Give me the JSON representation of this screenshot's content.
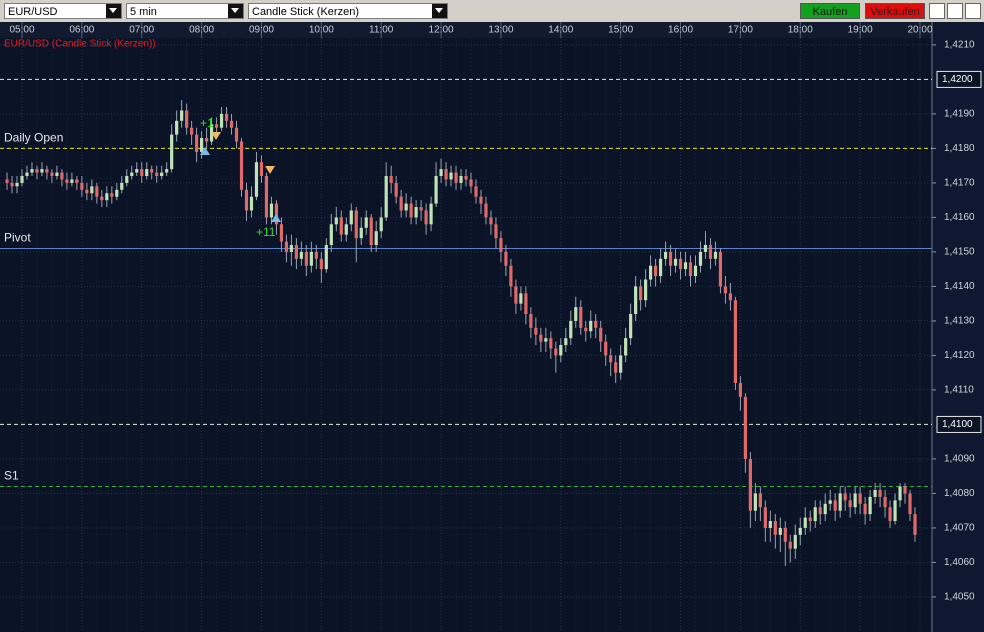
{
  "toolbar": {
    "symbol": "EUR/USD",
    "interval": "5 min",
    "chart_type": "Candle Stick (Kerzen)",
    "buy": "Kaufen",
    "sell": "Verkaufen"
  },
  "chart_data": {
    "type": "candlestick",
    "title": "EUR/USD (Candle Stick (Kerzen))",
    "xticks": [
      "05:00",
      "06:00",
      "07:00",
      "08:00",
      "09:00",
      "10:00",
      "11:00",
      "12:00",
      "13:00",
      "14:00",
      "15:00",
      "16:00",
      "17:00",
      "18:00",
      "19:00",
      "20:00"
    ],
    "ylim": [
      1.4041,
      1.4212
    ],
    "yticks": [
      {
        "value": 1.421,
        "label": "1,4210"
      },
      {
        "value": 1.419,
        "label": "1,4190"
      },
      {
        "value": 1.418,
        "label": "1,4180"
      },
      {
        "value": 1.417,
        "label": "1,4170"
      },
      {
        "value": 1.416,
        "label": "1,4160"
      },
      {
        "value": 1.415,
        "label": "1,4150"
      },
      {
        "value": 1.414,
        "label": "1,4140"
      },
      {
        "value": 1.413,
        "label": "1,4130"
      },
      {
        "value": 1.412,
        "label": "1,4120"
      },
      {
        "value": 1.411,
        "label": "1,4110"
      },
      {
        "value": 1.409,
        "label": "1,4090"
      },
      {
        "value": 1.408,
        "label": "1,4080"
      },
      {
        "value": 1.407,
        "label": "1,4070"
      },
      {
        "value": 1.406,
        "label": "1,4060"
      },
      {
        "value": 1.405,
        "label": "1,4050"
      }
    ],
    "highlighted_ticks": [
      {
        "value": 1.42,
        "label": "1,4200"
      },
      {
        "value": 1.41,
        "label": "1,4100"
      }
    ],
    "levels": [
      {
        "name": "Daily Open",
        "value": 1.418,
        "color": "#e6e61e",
        "style": "dashed"
      },
      {
        "name": "Pivot",
        "value": 1.4151,
        "color": "#5c82c8",
        "style": "solid"
      },
      {
        "name": "S1",
        "value": 1.4082,
        "color": "#3fae3f",
        "style": "dashed"
      }
    ],
    "annotations": [
      "+1",
      "+11"
    ],
    "up_color": "#bfe3b6",
    "down_color": "#e06a6a",
    "wick_color": "#9aa3b3",
    "candles": [
      [
        1.4171,
        1.4173,
        1.4168,
        1.417
      ],
      [
        1.417,
        1.4172,
        1.4167,
        1.4169
      ],
      [
        1.4169,
        1.4172,
        1.4167,
        1.417
      ],
      [
        1.417,
        1.4174,
        1.4169,
        1.4172
      ],
      [
        1.4172,
        1.4175,
        1.4171,
        1.4173
      ],
      [
        1.4173,
        1.4176,
        1.4172,
        1.4174
      ],
      [
        1.4174,
        1.4175,
        1.4171,
        1.4173
      ],
      [
        1.4173,
        1.4176,
        1.4172,
        1.4174
      ],
      [
        1.4174,
        1.4175,
        1.4171,
        1.4173
      ],
      [
        1.4173,
        1.4174,
        1.417,
        1.4172
      ],
      [
        1.4172,
        1.4175,
        1.4171,
        1.4173
      ],
      [
        1.4173,
        1.4174,
        1.4169,
        1.4171
      ],
      [
        1.4171,
        1.4173,
        1.4168,
        1.417
      ],
      [
        1.417,
        1.4173,
        1.4169,
        1.4171
      ],
      [
        1.4171,
        1.4172,
        1.4168,
        1.417
      ],
      [
        1.417,
        1.4172,
        1.4166,
        1.4168
      ],
      [
        1.4168,
        1.417,
        1.4165,
        1.4167
      ],
      [
        1.4167,
        1.4171,
        1.4165,
        1.4169
      ],
      [
        1.4169,
        1.417,
        1.4164,
        1.4166
      ],
      [
        1.4166,
        1.4168,
        1.4163,
        1.4165
      ],
      [
        1.4165,
        1.4169,
        1.4163,
        1.4167
      ],
      [
        1.4167,
        1.4169,
        1.4164,
        1.4166
      ],
      [
        1.4166,
        1.417,
        1.4165,
        1.4168
      ],
      [
        1.4168,
        1.4172,
        1.4167,
        1.417
      ],
      [
        1.417,
        1.4174,
        1.4169,
        1.4172
      ],
      [
        1.4172,
        1.4175,
        1.4171,
        1.4173
      ],
      [
        1.4173,
        1.4176,
        1.4172,
        1.4174
      ],
      [
        1.4174,
        1.4176,
        1.417,
        1.4172
      ],
      [
        1.4172,
        1.4176,
        1.4171,
        1.4174
      ],
      [
        1.4174,
        1.4175,
        1.4171,
        1.4173
      ],
      [
        1.4173,
        1.4175,
        1.417,
        1.4172
      ],
      [
        1.4172,
        1.4175,
        1.4171,
        1.4173
      ],
      [
        1.4173,
        1.4176,
        1.4172,
        1.4174
      ],
      [
        1.4174,
        1.4187,
        1.4173,
        1.4184
      ],
      [
        1.4184,
        1.4191,
        1.4182,
        1.4188
      ],
      [
        1.4188,
        1.4194,
        1.4186,
        1.4191
      ],
      [
        1.4191,
        1.4193,
        1.4184,
        1.4186
      ],
      [
        1.4186,
        1.4188,
        1.4181,
        1.4184
      ],
      [
        1.4184,
        1.4186,
        1.4176,
        1.4179
      ],
      [
        1.4179,
        1.4185,
        1.4177,
        1.4183
      ],
      [
        1.4183,
        1.4186,
        1.418,
        1.4182
      ],
      [
        1.4182,
        1.4189,
        1.4181,
        1.4187
      ],
      [
        1.4187,
        1.4189,
        1.4184,
        1.4186
      ],
      [
        1.4186,
        1.4192,
        1.4185,
        1.419
      ],
      [
        1.419,
        1.4192,
        1.4186,
        1.4188
      ],
      [
        1.4188,
        1.419,
        1.4184,
        1.4186
      ],
      [
        1.4186,
        1.4188,
        1.418,
        1.4182
      ],
      [
        1.4182,
        1.4183,
        1.4166,
        1.4168
      ],
      [
        1.4168,
        1.417,
        1.4159,
        1.4162
      ],
      [
        1.4162,
        1.4169,
        1.416,
        1.4166
      ],
      [
        1.4166,
        1.4179,
        1.4165,
        1.4176
      ],
      [
        1.4176,
        1.4178,
        1.417,
        1.4172
      ],
      [
        1.4172,
        1.4173,
        1.4158,
        1.416
      ],
      [
        1.416,
        1.4166,
        1.4158,
        1.4164
      ],
      [
        1.4164,
        1.4165,
        1.4155,
        1.4158
      ],
      [
        1.4158,
        1.416,
        1.415,
        1.4153
      ],
      [
        1.4153,
        1.4155,
        1.4147,
        1.415
      ],
      [
        1.415,
        1.4155,
        1.4146,
        1.4152
      ],
      [
        1.4152,
        1.4154,
        1.4145,
        1.4148
      ],
      [
        1.4148,
        1.4153,
        1.4146,
        1.415
      ],
      [
        1.415,
        1.4152,
        1.4143,
        1.4146
      ],
      [
        1.4146,
        1.4153,
        1.4144,
        1.415
      ],
      [
        1.415,
        1.4152,
        1.4145,
        1.4148
      ],
      [
        1.4148,
        1.415,
        1.4141,
        1.4145
      ],
      [
        1.4145,
        1.4154,
        1.4144,
        1.4152
      ],
      [
        1.4152,
        1.4161,
        1.415,
        1.4158
      ],
      [
        1.4158,
        1.4163,
        1.4156,
        1.416
      ],
      [
        1.416,
        1.4162,
        1.4153,
        1.4155
      ],
      [
        1.4155,
        1.416,
        1.4153,
        1.4158
      ],
      [
        1.4158,
        1.4164,
        1.4156,
        1.4162
      ],
      [
        1.4162,
        1.4163,
        1.4147,
        1.4154
      ],
      [
        1.4154,
        1.416,
        1.4152,
        1.4157
      ],
      [
        1.4157,
        1.4162,
        1.4155,
        1.416
      ],
      [
        1.416,
        1.4161,
        1.415,
        1.4152
      ],
      [
        1.4152,
        1.4159,
        1.415,
        1.4156
      ],
      [
        1.4156,
        1.4163,
        1.4154,
        1.416
      ],
      [
        1.416,
        1.4176,
        1.4159,
        1.4172
      ],
      [
        1.4172,
        1.4175,
        1.4167,
        1.417
      ],
      [
        1.417,
        1.4172,
        1.4164,
        1.4166
      ],
      [
        1.4166,
        1.4168,
        1.416,
        1.4162
      ],
      [
        1.4162,
        1.4167,
        1.416,
        1.4164
      ],
      [
        1.4164,
        1.4166,
        1.4158,
        1.416
      ],
      [
        1.416,
        1.4165,
        1.4158,
        1.4163
      ],
      [
        1.4163,
        1.4165,
        1.4159,
        1.4162
      ],
      [
        1.4162,
        1.4164,
        1.4155,
        1.4158
      ],
      [
        1.4158,
        1.4166,
        1.4156,
        1.4164
      ],
      [
        1.4164,
        1.4176,
        1.4163,
        1.4172
      ],
      [
        1.4172,
        1.4177,
        1.417,
        1.4174
      ],
      [
        1.4174,
        1.4176,
        1.4169,
        1.4171
      ],
      [
        1.4171,
        1.4175,
        1.4169,
        1.4173
      ],
      [
        1.4173,
        1.4175,
        1.4168,
        1.417
      ],
      [
        1.417,
        1.4174,
        1.4168,
        1.4172
      ],
      [
        1.4172,
        1.4174,
        1.4169,
        1.4171
      ],
      [
        1.4171,
        1.4173,
        1.4167,
        1.4169
      ],
      [
        1.4169,
        1.4171,
        1.4164,
        1.4166
      ],
      [
        1.4166,
        1.4168,
        1.4161,
        1.4164
      ],
      [
        1.4164,
        1.4166,
        1.4158,
        1.416
      ],
      [
        1.416,
        1.4162,
        1.4155,
        1.4158
      ],
      [
        1.4158,
        1.416,
        1.4151,
        1.4154
      ],
      [
        1.4154,
        1.4156,
        1.4147,
        1.415
      ],
      [
        1.415,
        1.4152,
        1.4143,
        1.4146
      ],
      [
        1.4146,
        1.4148,
        1.4137,
        1.414
      ],
      [
        1.414,
        1.4142,
        1.4132,
        1.4135
      ],
      [
        1.4135,
        1.414,
        1.4133,
        1.4138
      ],
      [
        1.4138,
        1.414,
        1.4129,
        1.4132
      ],
      [
        1.4132,
        1.4134,
        1.4125,
        1.4128
      ],
      [
        1.4128,
        1.4131,
        1.4123,
        1.4126
      ],
      [
        1.4126,
        1.4128,
        1.4121,
        1.4124
      ],
      [
        1.4124,
        1.4128,
        1.4121,
        1.4125
      ],
      [
        1.4125,
        1.4127,
        1.4119,
        1.4122
      ],
      [
        1.4122,
        1.4124,
        1.4115,
        1.412
      ],
      [
        1.412,
        1.4125,
        1.4118,
        1.4123
      ],
      [
        1.4123,
        1.4128,
        1.4121,
        1.4125
      ],
      [
        1.4125,
        1.4133,
        1.4123,
        1.413
      ],
      [
        1.413,
        1.4137,
        1.4128,
        1.4134
      ],
      [
        1.4134,
        1.4136,
        1.4126,
        1.4128
      ],
      [
        1.4128,
        1.413,
        1.4124,
        1.4127
      ],
      [
        1.4127,
        1.4133,
        1.4125,
        1.413
      ],
      [
        1.413,
        1.4132,
        1.4125,
        1.4128
      ],
      [
        1.4128,
        1.413,
        1.4121,
        1.4124
      ],
      [
        1.4124,
        1.4126,
        1.4117,
        1.412
      ],
      [
        1.412,
        1.4122,
        1.4114,
        1.4118
      ],
      [
        1.4118,
        1.412,
        1.4112,
        1.4115
      ],
      [
        1.4115,
        1.4123,
        1.4113,
        1.412
      ],
      [
        1.412,
        1.4128,
        1.4118,
        1.4125
      ],
      [
        1.4125,
        1.4135,
        1.4123,
        1.4132
      ],
      [
        1.4132,
        1.4143,
        1.413,
        1.414
      ],
      [
        1.414,
        1.4142,
        1.4133,
        1.4136
      ],
      [
        1.4136,
        1.4145,
        1.4134,
        1.4142
      ],
      [
        1.4142,
        1.4149,
        1.414,
        1.4146
      ],
      [
        1.4146,
        1.4148,
        1.414,
        1.4143
      ],
      [
        1.4143,
        1.4151,
        1.4141,
        1.4148
      ],
      [
        1.4148,
        1.4153,
        1.4146,
        1.415
      ],
      [
        1.415,
        1.4152,
        1.4143,
        1.4146
      ],
      [
        1.4146,
        1.4151,
        1.4144,
        1.4148
      ],
      [
        1.4148,
        1.415,
        1.4142,
        1.4145
      ],
      [
        1.4145,
        1.415,
        1.4143,
        1.4147
      ],
      [
        1.4147,
        1.4149,
        1.414,
        1.4143
      ],
      [
        1.4143,
        1.4149,
        1.4141,
        1.4146
      ],
      [
        1.4146,
        1.4153,
        1.4144,
        1.415
      ],
      [
        1.415,
        1.4156,
        1.4148,
        1.4152
      ],
      [
        1.4152,
        1.4154,
        1.4145,
        1.4148
      ],
      [
        1.4148,
        1.4153,
        1.4146,
        1.415
      ],
      [
        1.415,
        1.4151,
        1.4138,
        1.414
      ],
      [
        1.414,
        1.4143,
        1.4135,
        1.4138
      ],
      [
        1.4138,
        1.4141,
        1.4133,
        1.4136
      ],
      [
        1.4136,
        1.4137,
        1.411,
        1.4112
      ],
      [
        1.4112,
        1.4114,
        1.4104,
        1.4108
      ],
      [
        1.4108,
        1.4109,
        1.4086,
        1.409
      ],
      [
        1.409,
        1.4092,
        1.407,
        1.4075
      ],
      [
        1.4075,
        1.4083,
        1.4072,
        1.408
      ],
      [
        1.408,
        1.4082,
        1.4072,
        1.4076
      ],
      [
        1.4076,
        1.4078,
        1.4066,
        1.407
      ],
      [
        1.407,
        1.4075,
        1.4066,
        1.4072
      ],
      [
        1.4072,
        1.4074,
        1.4064,
        1.4068
      ],
      [
        1.4068,
        1.4073,
        1.4063,
        1.407
      ],
      [
        1.407,
        1.4072,
        1.4059,
        1.4066
      ],
      [
        1.4066,
        1.4068,
        1.406,
        1.4064
      ],
      [
        1.4064,
        1.4071,
        1.4061,
        1.4068
      ],
      [
        1.4068,
        1.4073,
        1.4065,
        1.407
      ],
      [
        1.407,
        1.4076,
        1.4068,
        1.4073
      ],
      [
        1.4073,
        1.4075,
        1.4069,
        1.4072
      ],
      [
        1.4072,
        1.4078,
        1.407,
        1.4076
      ],
      [
        1.4076,
        1.4078,
        1.4071,
        1.4074
      ],
      [
        1.4074,
        1.408,
        1.4072,
        1.4077
      ],
      [
        1.4077,
        1.4081,
        1.4075,
        1.4078
      ],
      [
        1.4078,
        1.408,
        1.4072,
        1.4075
      ],
      [
        1.4075,
        1.4082,
        1.4073,
        1.408
      ],
      [
        1.408,
        1.4082,
        1.4075,
        1.4078
      ],
      [
        1.4078,
        1.408,
        1.4073,
        1.4076
      ],
      [
        1.4076,
        1.4082,
        1.4074,
        1.408
      ],
      [
        1.408,
        1.4082,
        1.4074,
        1.4077
      ],
      [
        1.4077,
        1.4079,
        1.4071,
        1.4074
      ],
      [
        1.4074,
        1.4081,
        1.4072,
        1.4079
      ],
      [
        1.4079,
        1.4083,
        1.4077,
        1.4081
      ],
      [
        1.4081,
        1.4083,
        1.4076,
        1.4079
      ],
      [
        1.4079,
        1.4081,
        1.4073,
        1.4076
      ],
      [
        1.4076,
        1.4078,
        1.407,
        1.4072
      ],
      [
        1.4072,
        1.408,
        1.4071,
        1.4078
      ],
      [
        1.4078,
        1.4083,
        1.4076,
        1.4082
      ],
      [
        1.4082,
        1.4083,
        1.4077,
        1.408
      ],
      [
        1.408,
        1.4081,
        1.4072,
        1.4074
      ],
      [
        1.4074,
        1.4076,
        1.4066,
        1.4068
      ]
    ]
  }
}
